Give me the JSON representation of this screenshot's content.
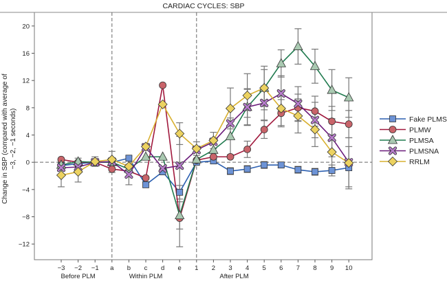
{
  "chart_data": {
    "type": "line",
    "title": "CARDIAC CYCLES: SBP",
    "ylabel_lines": [
      "Change in SBP (compared with average of",
      "−3, −2, −1 seconds)"
    ],
    "xlabel": "",
    "categories": [
      "−3",
      "−2",
      "−1",
      "a",
      "b",
      "c",
      "d",
      "e",
      "1",
      "2",
      "3",
      "4",
      "5",
      "6",
      "7",
      "8",
      "9",
      "10"
    ],
    "groups": [
      {
        "label": "Before PLM",
        "from": 0,
        "to": 2
      },
      {
        "label": "Within PLM",
        "from": 3,
        "to": 7
      },
      {
        "label": "After PLM",
        "from": 8,
        "to": 17
      }
    ],
    "dividers_after_index": [
      3,
      8
    ],
    "yticks": [
      -12,
      -8,
      -4,
      0,
      4,
      8,
      12,
      16,
      20
    ],
    "ytick_labels": [
      "−12",
      "−8",
      "−4",
      "0",
      "4",
      "8",
      "12",
      "16",
      "20"
    ],
    "ylim": [
      -14.3,
      22
    ],
    "reference_line": 0,
    "legend_position": "right",
    "series": [
      {
        "name": "Fake PLMS",
        "marker": "square",
        "line": "#2b5fb0",
        "fill": "#6d93d6",
        "values": [
          -0.5,
          -0.2,
          0,
          0,
          0.6,
          -3.3,
          -1.4,
          -4.4,
          0,
          0.2,
          -1.3,
          -1.0,
          -0.4,
          -0.4,
          -1.1,
          -1.4,
          -1.2,
          -0.8
        ],
        "err": [
          0,
          0,
          0,
          0,
          0,
          0,
          0,
          1.0,
          0,
          0,
          0.5,
          0.5,
          0.5,
          0.4,
          0.5,
          0.5,
          0.8,
          3.1
        ]
      },
      {
        "name": "PLMW",
        "marker": "circle",
        "line": "#a0183c",
        "fill": "#c9646a",
        "values": [
          0.4,
          0,
          0,
          -1.0,
          -1.3,
          -2.3,
          11.3,
          -8.2,
          0.3,
          0.8,
          0.8,
          1.9,
          4.8,
          7.2,
          8.0,
          7.5,
          6.0,
          5.6
        ],
        "err": [
          0,
          0,
          0,
          0.5,
          0,
          0,
          0,
          4.2,
          0,
          0,
          0,
          1.2,
          1.3,
          2.0,
          2.0,
          2.2,
          2.2,
          2.0
        ]
      },
      {
        "name": "PLMSA",
        "marker": "triangle",
        "line": "#1f7a4e",
        "fill": "#a9c9b1",
        "values": [
          -0.4,
          0.1,
          0,
          0,
          -1.0,
          0.8,
          0.8,
          -7.8,
          0.4,
          1.8,
          3.8,
          8.1,
          10.9,
          14.5,
          17.0,
          14.1,
          10.6,
          9.5
        ],
        "err": [
          0,
          0.5,
          0,
          0,
          0,
          0,
          0,
          2.0,
          0,
          1.3,
          2.7,
          2.7,
          2.7,
          2.0,
          2.6,
          2.5,
          3.0,
          2.9
        ]
      },
      {
        "name": "PLMSNA",
        "marker": "x",
        "line": "#6a1a7a",
        "fill": "#b77ccc",
        "values": [
          -0.8,
          -0.7,
          0,
          0.1,
          -1.8,
          2.2,
          -0.9,
          -0.5,
          1.8,
          3.0,
          5.7,
          8.1,
          8.7,
          10.1,
          8.6,
          6.2,
          3.6,
          0
        ],
        "err": [
          0,
          0,
          0,
          0,
          1.5,
          0,
          0,
          4.3,
          0,
          0,
          0,
          2.6,
          2.5,
          2.6,
          2.5,
          2.6,
          2.8,
          3.6
        ]
      },
      {
        "name": "RRLM",
        "marker": "diamond",
        "line": "#d8b030",
        "fill": "#ecd260",
        "values": [
          -1.9,
          -1.4,
          0.1,
          0.4,
          -0.6,
          2.3,
          8.5,
          4.2,
          2.0,
          3.2,
          7.9,
          9.8,
          10.9,
          7.9,
          6.8,
          4.8,
          1.5,
          -0.1
        ],
        "err": [
          1.7,
          1.5,
          0.7,
          1.2,
          1.5,
          0,
          0,
          1.6,
          1.0,
          1.2,
          3.0,
          3.2,
          3.2,
          2.5,
          2.5,
          2.5,
          2.5,
          0
        ]
      }
    ]
  }
}
